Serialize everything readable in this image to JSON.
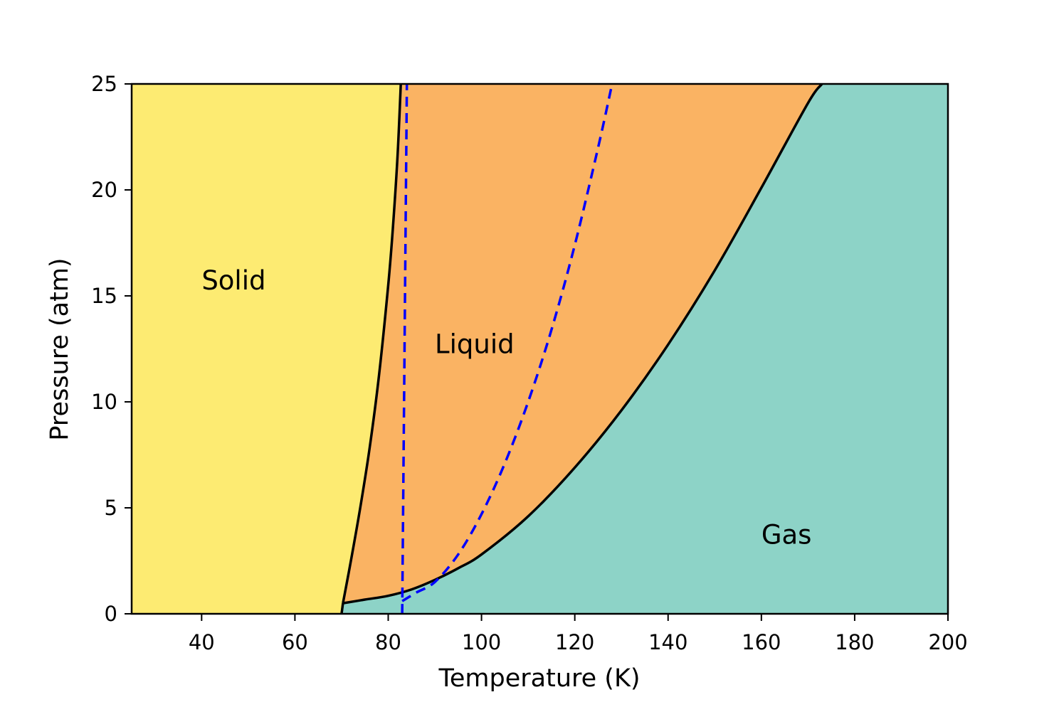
{
  "colors": {
    "solid": "#fdeb72",
    "liquid": "#fab363",
    "gas": "#8dd3c7",
    "boundary": "#000000",
    "dashed": "#0000ff"
  },
  "chart_data": {
    "type": "area",
    "title": "",
    "xlabel": "Temperature (K)",
    "ylabel": "Pressure (atm)",
    "xlim": [
      25,
      200
    ],
    "ylim": [
      0,
      25
    ],
    "xticks": [
      40,
      60,
      80,
      100,
      120,
      140,
      160,
      180,
      200
    ],
    "yticks": [
      0,
      5,
      10,
      15,
      20,
      25
    ],
    "grid": false,
    "legend": false,
    "regions": [
      {
        "name": "Solid",
        "label_at": {
          "x": 40,
          "y": 15.3
        }
      },
      {
        "name": "Liquid",
        "label_at": {
          "x": 90,
          "y": 12.3
        }
      },
      {
        "name": "Gas",
        "label_at": {
          "x": 160,
          "y": 3.3
        }
      }
    ],
    "series": [
      {
        "role": "solid-liquid boundary",
        "style": "solid",
        "x": [
          70.3,
          72,
          74,
          76,
          78,
          80,
          81,
          82,
          82.7
        ],
        "y": [
          0.5,
          2.5,
          5.0,
          7.8,
          11.2,
          15.5,
          18.2,
          21.6,
          25
        ]
      },
      {
        "role": "liquid-gas boundary",
        "style": "solid",
        "x": [
          70.3,
          75,
          80,
          85,
          90,
          95,
          100,
          110,
          120,
          130,
          140,
          150,
          160,
          170,
          173
        ],
        "y": [
          0.5,
          0.67,
          0.85,
          1.15,
          1.6,
          2.15,
          2.8,
          4.6,
          6.9,
          9.6,
          12.7,
          16.2,
          20.1,
          24.1,
          25
        ]
      },
      {
        "role": "dashed boundary (near vertical)",
        "style": "dashed",
        "x": [
          83.0,
          83.2,
          83.4,
          83.6,
          83.8,
          84.0
        ],
        "y": [
          0,
          5,
          10,
          15,
          20,
          25
        ]
      },
      {
        "role": "dashed boundary (curved)",
        "style": "dashed",
        "x": [
          83.0,
          86,
          90,
          95,
          100,
          105,
          110,
          115,
          120,
          125,
          128
        ],
        "y": [
          0.6,
          1.0,
          1.5,
          2.8,
          4.7,
          7.1,
          10.0,
          13.4,
          17.4,
          22.0,
          25
        ]
      }
    ]
  }
}
